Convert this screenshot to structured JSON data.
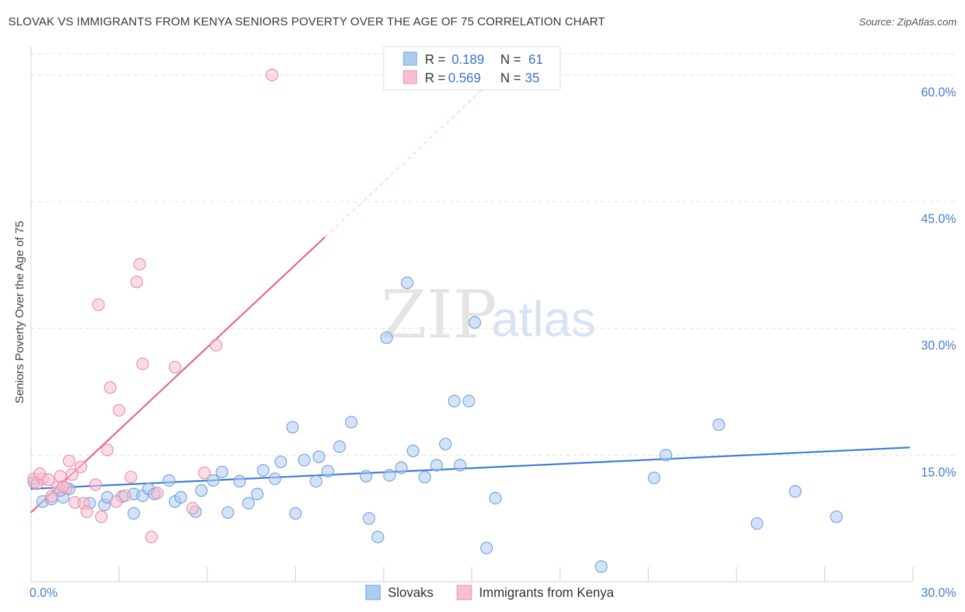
{
  "header": {
    "title": "SLOVAK VS IMMIGRANTS FROM KENYA SENIORS POVERTY OVER THE AGE OF 75 CORRELATION CHART",
    "source": "Source: ZipAtlas.com"
  },
  "watermark": {
    "zip": "ZIP",
    "atlas": "atlas"
  },
  "legend": {
    "r_label": "R =",
    "n_label": "N =",
    "slovaks": {
      "r": "0.189",
      "n": "61"
    },
    "kenya": {
      "r": "0.569",
      "n": "35"
    }
  },
  "colors": {
    "slovaks_fill": "#aecbf0",
    "slovaks_stroke": "#6f9fdc",
    "slovaks_line": "#3a7bd5",
    "kenya_fill": "#f7bfd0",
    "kenya_stroke": "#e88aa8",
    "kenya_line": "#e8648f",
    "tick_text": "#4a7fd0",
    "grid": "#dddddd"
  },
  "chart_data": {
    "type": "scatter",
    "title": "SLOVAK VS IMMIGRANTS FROM KENYA SENIORS POVERTY OVER THE AGE OF 75 CORRELATION CHART",
    "xlabel": "",
    "ylabel": "Seniors Poverty Over the Age of 75",
    "xlim": [
      0,
      30
    ],
    "ylim": [
      0,
      64
    ],
    "x_ticks": [
      "0.0%",
      "30.0%"
    ],
    "y_ticks": [
      {
        "value": 15,
        "label": "15.0%"
      },
      {
        "value": 30,
        "label": "30.0%"
      },
      {
        "value": 45,
        "label": "45.0%"
      },
      {
        "value": 60,
        "label": "60.0%"
      }
    ],
    "grid": true,
    "legend_position": "top-center",
    "series": [
      {
        "name": "Slovaks",
        "r": 0.189,
        "n": 61,
        "trend": {
          "x": [
            0,
            29.9
          ],
          "y": [
            11.0,
            15.9
          ]
        },
        "points": [
          [
            0.1,
            11.8
          ],
          [
            0.4,
            9.5
          ],
          [
            0.7,
            9.8
          ],
          [
            1.1,
            10.0
          ],
          [
            1.3,
            11.0
          ],
          [
            1.0,
            10.8
          ],
          [
            2.0,
            9.3
          ],
          [
            2.5,
            9.1
          ],
          [
            2.6,
            10.0
          ],
          [
            3.1,
            10.1
          ],
          [
            3.5,
            10.4
          ],
          [
            3.5,
            8.1
          ],
          [
            3.8,
            10.2
          ],
          [
            4.0,
            11.0
          ],
          [
            4.2,
            10.4
          ],
          [
            4.7,
            12.0
          ],
          [
            4.9,
            9.5
          ],
          [
            5.1,
            10.0
          ],
          [
            5.6,
            8.3
          ],
          [
            5.8,
            10.8
          ],
          [
            6.2,
            12.0
          ],
          [
            6.5,
            13.0
          ],
          [
            6.7,
            8.2
          ],
          [
            7.1,
            11.9
          ],
          [
            7.4,
            9.3
          ],
          [
            7.7,
            10.4
          ],
          [
            7.9,
            13.2
          ],
          [
            8.3,
            12.2
          ],
          [
            8.5,
            14.2
          ],
          [
            8.9,
            18.3
          ],
          [
            9.0,
            8.1
          ],
          [
            9.3,
            14.4
          ],
          [
            9.7,
            11.9
          ],
          [
            9.8,
            14.8
          ],
          [
            10.1,
            13.1
          ],
          [
            10.5,
            16.0
          ],
          [
            10.9,
            18.9
          ],
          [
            11.4,
            12.5
          ],
          [
            11.5,
            7.5
          ],
          [
            11.8,
            5.3
          ],
          [
            12.1,
            28.9
          ],
          [
            12.2,
            12.6
          ],
          [
            12.6,
            13.5
          ],
          [
            13.0,
            15.5
          ],
          [
            13.4,
            12.4
          ],
          [
            13.8,
            13.8
          ],
          [
            14.1,
            16.3
          ],
          [
            14.4,
            21.4
          ],
          [
            14.6,
            13.8
          ],
          [
            14.9,
            21.4
          ],
          [
            15.1,
            30.7
          ],
          [
            15.5,
            4.0
          ],
          [
            15.8,
            9.9
          ],
          [
            19.4,
            1.8
          ],
          [
            21.2,
            12.3
          ],
          [
            21.6,
            15.0
          ],
          [
            23.4,
            18.6
          ],
          [
            24.7,
            6.9
          ],
          [
            26.0,
            10.7
          ],
          [
            27.4,
            7.7
          ],
          [
            12.8,
            35.4
          ]
        ]
      },
      {
        "name": "Immigrants from Kenya",
        "r": 0.569,
        "n": 35,
        "trend": {
          "x": [
            0,
            10.0
          ],
          "y": [
            8.2,
            40.8
          ]
        },
        "trend_extension": {
          "x": [
            10.0,
            15.7
          ],
          "y": [
            40.8,
            59.4
          ]
        },
        "points": [
          [
            0.1,
            12.2
          ],
          [
            0.2,
            11.6
          ],
          [
            0.4,
            12.2
          ],
          [
            0.6,
            12.1
          ],
          [
            0.7,
            10.1
          ],
          [
            0.9,
            11.2
          ],
          [
            1.0,
            12.5
          ],
          [
            1.2,
            11.1
          ],
          [
            1.3,
            14.3
          ],
          [
            1.4,
            12.7
          ],
          [
            1.5,
            9.4
          ],
          [
            1.7,
            13.6
          ],
          [
            1.8,
            9.3
          ],
          [
            1.9,
            8.3
          ],
          [
            2.2,
            11.5
          ],
          [
            2.3,
            32.8
          ],
          [
            2.4,
            7.7
          ],
          [
            2.6,
            15.6
          ],
          [
            2.7,
            23.0
          ],
          [
            2.9,
            9.5
          ],
          [
            3.0,
            20.3
          ],
          [
            3.2,
            10.2
          ],
          [
            3.4,
            12.4
          ],
          [
            3.6,
            35.5
          ],
          [
            3.7,
            37.6
          ],
          [
            3.8,
            25.8
          ],
          [
            4.1,
            5.3
          ],
          [
            4.3,
            10.5
          ],
          [
            4.9,
            25.4
          ],
          [
            5.5,
            8.7
          ],
          [
            5.9,
            12.9
          ],
          [
            6.3,
            28.0
          ],
          [
            8.2,
            60.0
          ],
          [
            1.1,
            11.3
          ],
          [
            0.3,
            12.8
          ]
        ]
      }
    ]
  },
  "bottom_legend": {
    "slovaks": "Slovaks",
    "kenya": "Immigrants from Kenya"
  }
}
